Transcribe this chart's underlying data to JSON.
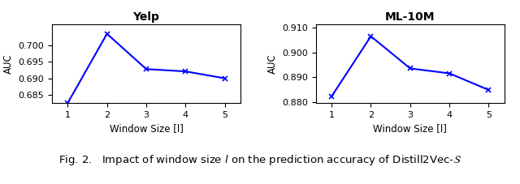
{
  "yelp": {
    "title": "Yelp",
    "x": [
      1,
      2,
      3,
      4,
      5
    ],
    "y": [
      0.6825,
      0.7035,
      0.6928,
      0.6921,
      0.69
    ],
    "xlabel": "Window Size [l]",
    "ylabel": "AUC",
    "ylim": [
      0.6825,
      0.7065
    ],
    "yticks": [
      0.685,
      0.69,
      0.695,
      0.7
    ],
    "line_color": "blue"
  },
  "ml10m": {
    "title": "ML-10M",
    "x": [
      1,
      2,
      3,
      4,
      5
    ],
    "y": [
      0.8822,
      0.9065,
      0.8935,
      0.8915,
      0.8848
    ],
    "xlabel": "Window Size [l]",
    "ylabel": "AUC",
    "ylim": [
      0.8795,
      0.9115
    ],
    "yticks": [
      0.88,
      0.89,
      0.9,
      0.91
    ],
    "line_color": "blue"
  },
  "caption": "Fig. 2.   Impact of window size $l$ on the prediction accuracy of Distill2Vec-$\\mathcal{S}$",
  "caption_fontsize": 9.5
}
